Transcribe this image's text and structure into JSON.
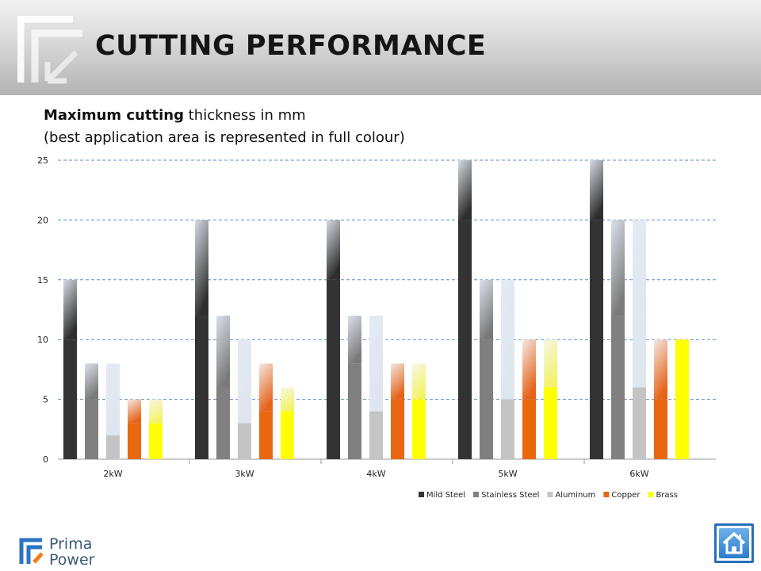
{
  "header": {
    "title": "CUTTING PERFORMANCE"
  },
  "subtitle": {
    "line1_bold": "Maximum cutting",
    "line1_rest": " thickness in mm",
    "line2": "(best application area is represented in full colour)"
  },
  "brand": {
    "line1": "Prima",
    "line2": "Power"
  },
  "icons": {
    "header_logo": "prima-arrow-logo-icon",
    "brand_logo": "prima-power-logo-icon",
    "home": "home-icon"
  },
  "chart_data": {
    "type": "bar",
    "categories": [
      "2kW",
      "3kW",
      "4kW",
      "5kW",
      "6kW"
    ],
    "ylim": [
      0,
      25
    ],
    "yticks": [
      0,
      5,
      10,
      15,
      20,
      25
    ],
    "grid": true,
    "legend_position": "bottom-right",
    "series": [
      {
        "name": "Mild Steel",
        "color": "#333333",
        "best": [
          10,
          12,
          15,
          20,
          20
        ],
        "max": [
          15,
          20,
          20,
          25,
          25
        ]
      },
      {
        "name": "Stainless Steel",
        "color": "#808080",
        "best": [
          5,
          6,
          8,
          10,
          12
        ],
        "max": [
          8,
          12,
          12,
          15,
          20
        ]
      },
      {
        "name": "Aluminum",
        "color": "#c4c4c4",
        "best": [
          2,
          3,
          4,
          5,
          6
        ],
        "max": [
          8,
          10,
          12,
          15,
          20
        ]
      },
      {
        "name": "Copper",
        "color": "#e8670f",
        "best": [
          3,
          4,
          5,
          5,
          5
        ],
        "max": [
          5,
          8,
          8,
          10,
          10
        ]
      },
      {
        "name": "Brass",
        "color": "#ffff00",
        "best": [
          3,
          4,
          5,
          6,
          10
        ],
        "max": [
          5,
          6,
          8,
          10,
          10
        ]
      }
    ]
  }
}
